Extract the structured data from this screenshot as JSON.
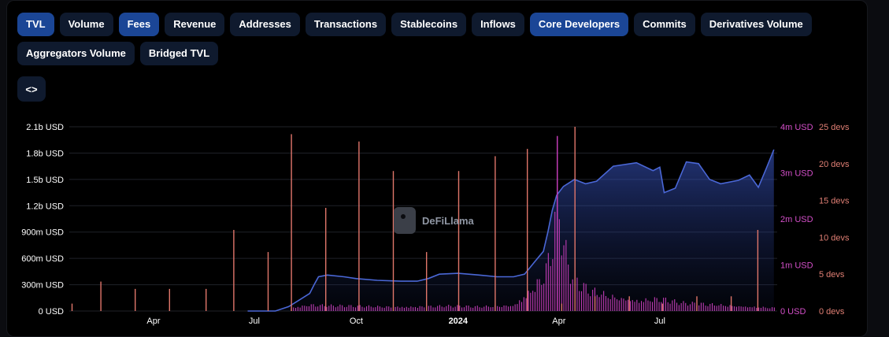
{
  "tabs": [
    {
      "label": "TVL",
      "active": true
    },
    {
      "label": "Volume",
      "active": false
    },
    {
      "label": "Fees",
      "active": true
    },
    {
      "label": "Revenue",
      "active": false
    },
    {
      "label": "Addresses",
      "active": false
    },
    {
      "label": "Transactions",
      "active": false
    },
    {
      "label": "Stablecoins",
      "active": false
    },
    {
      "label": "Inflows",
      "active": false
    },
    {
      "label": "Core Developers",
      "active": true
    },
    {
      "label": "Commits",
      "active": false
    },
    {
      "label": "Derivatives Volume",
      "active": false
    },
    {
      "label": "Aggregators Volume",
      "active": false
    },
    {
      "label": "Bridged TVL",
      "active": false
    }
  ],
  "embed_label": "<>",
  "watermark": "DeFiLlama",
  "colors": {
    "tvl": "#4a67d6",
    "fees": "#c13cb6",
    "devs": "#e0766a",
    "active_tab": "#1b4696",
    "tab": "#0f1a2e"
  },
  "chart_data": {
    "type": "line",
    "title": "",
    "x_range": [
      "2023-01-15",
      "2024-10-15"
    ],
    "x_ticks": [
      {
        "date": "2023-04-01",
        "label": "Apr",
        "bold": false
      },
      {
        "date": "2023-07-01",
        "label": "Jul",
        "bold": false
      },
      {
        "date": "2023-10-01",
        "label": "Oct",
        "bold": false
      },
      {
        "date": "2024-01-01",
        "label": "2024",
        "bold": true
      },
      {
        "date": "2024-04-01",
        "label": "Apr",
        "bold": false
      },
      {
        "date": "2024-07-01",
        "label": "Jul",
        "bold": false
      }
    ],
    "axes": {
      "tvl": {
        "ylim": [
          0,
          2100000000
        ],
        "ticks": [
          {
            "value": 0,
            "label": "0 USD"
          },
          {
            "value": 300000000,
            "label": "300m USD"
          },
          {
            "value": 600000000,
            "label": "600m USD"
          },
          {
            "value": 900000000,
            "label": "900m USD"
          },
          {
            "value": 1200000000,
            "label": "1.2b USD"
          },
          {
            "value": 1500000000,
            "label": "1.5b USD"
          },
          {
            "value": 1800000000,
            "label": "1.8b USD"
          },
          {
            "value": 2100000000,
            "label": "2.1b USD"
          }
        ]
      },
      "fees": {
        "ylim": [
          0,
          4000000
        ],
        "ticks": [
          {
            "value": 0,
            "label": "0 USD"
          },
          {
            "value": 1000000,
            "label": "1m USD"
          },
          {
            "value": 2000000,
            "label": "2m USD"
          },
          {
            "value": 3000000,
            "label": "3m USD"
          },
          {
            "value": 4000000,
            "label": "4m USD"
          }
        ]
      },
      "devs": {
        "ylim": [
          0,
          25
        ],
        "ticks": [
          {
            "value": 0,
            "label": "0 devs"
          },
          {
            "value": 5,
            "label": "5 devs"
          },
          {
            "value": 10,
            "label": "10 devs"
          },
          {
            "value": 15,
            "label": "15 devs"
          },
          {
            "value": 20,
            "label": "20 devs"
          },
          {
            "value": 25,
            "label": "25 devs"
          }
        ]
      }
    },
    "series": [
      {
        "key": "tvl",
        "type": "area",
        "points": [
          [
            "2023-06-25",
            0
          ],
          [
            "2023-07-20",
            0
          ],
          [
            "2023-08-01",
            50000000
          ],
          [
            "2023-08-10",
            120000000
          ],
          [
            "2023-08-20",
            200000000
          ],
          [
            "2023-08-24",
            300000000
          ],
          [
            "2023-08-28",
            390000000
          ],
          [
            "2023-09-05",
            410000000
          ],
          [
            "2023-09-20",
            390000000
          ],
          [
            "2023-10-01",
            370000000
          ],
          [
            "2023-10-20",
            350000000
          ],
          [
            "2023-11-10",
            340000000
          ],
          [
            "2023-11-25",
            340000000
          ],
          [
            "2023-12-05",
            370000000
          ],
          [
            "2023-12-15",
            420000000
          ],
          [
            "2024-01-01",
            430000000
          ],
          [
            "2024-01-20",
            410000000
          ],
          [
            "2024-02-05",
            390000000
          ],
          [
            "2024-02-20",
            390000000
          ],
          [
            "2024-03-01",
            420000000
          ],
          [
            "2024-03-10",
            560000000
          ],
          [
            "2024-03-18",
            680000000
          ],
          [
            "2024-03-22",
            900000000
          ],
          [
            "2024-03-26",
            1150000000
          ],
          [
            "2024-03-30",
            1320000000
          ],
          [
            "2024-04-05",
            1420000000
          ],
          [
            "2024-04-15",
            1500000000
          ],
          [
            "2024-04-25",
            1450000000
          ],
          [
            "2024-05-05",
            1480000000
          ],
          [
            "2024-05-20",
            1650000000
          ],
          [
            "2024-06-10",
            1690000000
          ],
          [
            "2024-06-25",
            1600000000
          ],
          [
            "2024-07-01",
            1640000000
          ],
          [
            "2024-07-05",
            1350000000
          ],
          [
            "2024-07-15",
            1400000000
          ],
          [
            "2024-07-25",
            1700000000
          ],
          [
            "2024-08-05",
            1680000000
          ],
          [
            "2024-08-15",
            1500000000
          ],
          [
            "2024-08-25",
            1450000000
          ],
          [
            "2024-09-10",
            1490000000
          ],
          [
            "2024-09-20",
            1550000000
          ],
          [
            "2024-09-28",
            1410000000
          ],
          [
            "2024-10-05",
            1620000000
          ],
          [
            "2024-10-12",
            1840000000
          ]
        ]
      },
      {
        "key": "fees",
        "type": "bar",
        "peaks": [
          [
            "2023-08-05",
            100000
          ],
          [
            "2023-08-20",
            180000
          ],
          [
            "2023-09-05",
            150000
          ],
          [
            "2023-10-10",
            130000
          ],
          [
            "2023-11-15",
            120000
          ],
          [
            "2023-12-20",
            140000
          ],
          [
            "2024-01-20",
            120000
          ],
          [
            "2024-02-20",
            160000
          ],
          [
            "2024-03-05",
            550000
          ],
          [
            "2024-03-15",
            900000
          ],
          [
            "2024-03-20",
            1200000
          ],
          [
            "2024-03-25",
            1700000
          ],
          [
            "2024-03-28",
            2600000
          ],
          [
            "2024-03-30",
            3800000
          ],
          [
            "2024-04-02",
            2300000
          ],
          [
            "2024-04-10",
            1100000
          ],
          [
            "2024-04-20",
            700000
          ],
          [
            "2024-05-01",
            550000
          ],
          [
            "2024-05-20",
            400000
          ],
          [
            "2024-06-10",
            300000
          ],
          [
            "2024-07-01",
            350000
          ],
          [
            "2024-07-20",
            220000
          ],
          [
            "2024-08-20",
            180000
          ],
          [
            "2024-09-15",
            130000
          ],
          [
            "2024-10-12",
            90000
          ]
        ]
      },
      {
        "key": "devs",
        "type": "bar",
        "points": [
          [
            "2023-01-17",
            1
          ],
          [
            "2023-02-12",
            4
          ],
          [
            "2023-03-15",
            3
          ],
          [
            "2023-04-15",
            3
          ],
          [
            "2023-05-18",
            3
          ],
          [
            "2023-06-12",
            11
          ],
          [
            "2023-07-13",
            8
          ],
          [
            "2023-08-03",
            24
          ],
          [
            "2023-09-03",
            14
          ],
          [
            "2023-10-03",
            23
          ],
          [
            "2023-11-03",
            19
          ],
          [
            "2023-12-03",
            8
          ],
          [
            "2024-01-01",
            19
          ],
          [
            "2024-02-03",
            21
          ],
          [
            "2024-03-03",
            22
          ],
          [
            "2024-04-03",
            1
          ],
          [
            "2024-04-15",
            25
          ],
          [
            "2024-05-03",
            2
          ],
          [
            "2024-06-03",
            2
          ],
          [
            "2024-07-03",
            1
          ],
          [
            "2024-08-03",
            2
          ],
          [
            "2024-09-03",
            2
          ],
          [
            "2024-09-27",
            11
          ]
        ]
      }
    ]
  }
}
